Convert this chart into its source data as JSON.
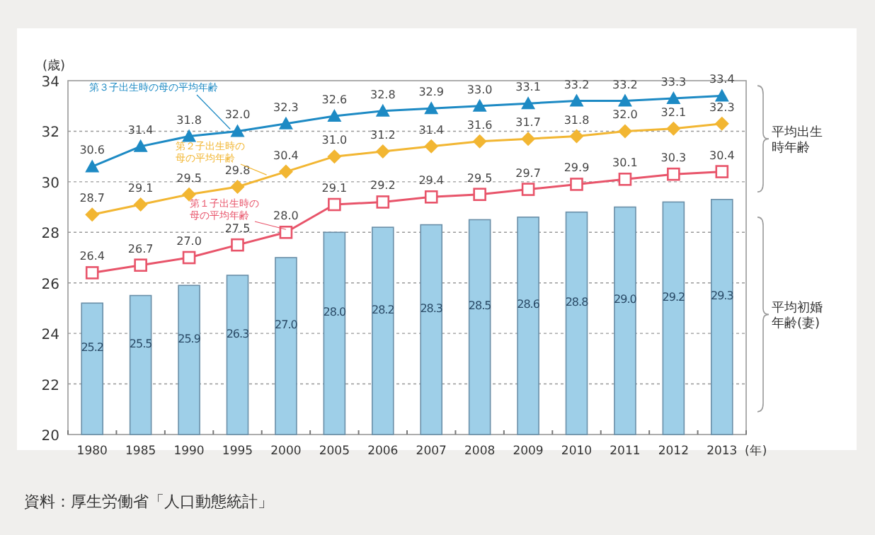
{
  "chart_data": {
    "type": "bar",
    "ylabel": "(歳)",
    "xlabel": "(年)",
    "categories": [
      "1980",
      "1985",
      "1990",
      "1995",
      "2000",
      "2005",
      "2006",
      "2007",
      "2008",
      "2009",
      "2010",
      "2011",
      "2012",
      "2013"
    ],
    "series": [
      {
        "color": "#9ecfe8",
        "values": [
          25.2,
          25.5,
          25.9,
          26.3,
          27.0,
          28.0,
          28.2,
          28.3,
          28.5,
          28.6,
          28.8,
          29.0,
          29.2,
          29.3
        ],
        "value_labels": [
          "25.2",
          "25.5",
          "25.9",
          "26.3",
          "27.0",
          "28.0",
          "28.2",
          "28.3",
          "28.5",
          "28.6",
          "28.8",
          "29.0",
          "29.2",
          "29.3"
        ]
      },
      {
        "type": "line",
        "name": "第１子出生時の母の平均年齢",
        "color": "#e8546a",
        "marker": "square",
        "values": [
          26.4,
          26.7,
          27.0,
          27.5,
          28.0,
          29.1,
          29.2,
          29.4,
          29.5,
          29.7,
          29.9,
          30.1,
          30.3,
          30.4
        ],
        "value_labels": [
          "26.4",
          "26.7",
          "27.0",
          "27.5",
          "28.0",
          "29.1",
          "29.2",
          "29.4",
          "29.5",
          "29.7",
          "29.9",
          "30.1",
          "30.3",
          "30.4"
        ]
      },
      {
        "type": "line",
        "name": "第２子出生時の母の平均年齢",
        "color": "#f2b632",
        "marker": "diamond",
        "values": [
          28.7,
          29.1,
          29.5,
          29.8,
          30.4,
          31.0,
          31.2,
          31.4,
          31.6,
          31.7,
          31.8,
          32.0,
          32.1,
          32.3
        ],
        "value_labels": [
          "28.7",
          "29.1",
          "29.5",
          "29.8",
          "30.4",
          "31.0",
          "31.2",
          "31.4",
          "31.6",
          "31.7",
          "31.8",
          "32.0",
          "32.1",
          "32.3"
        ]
      },
      {
        "type": "line",
        "name": "第３子出生時の母の平均年齢",
        "color": "#1d8ac4",
        "marker": "triangle",
        "values": [
          30.6,
          31.4,
          31.8,
          32.0,
          32.3,
          32.6,
          32.8,
          32.9,
          33.0,
          33.1,
          33.2,
          33.2,
          33.3,
          33.4
        ],
        "value_labels": [
          "30.6",
          "31.4",
          "31.8",
          "32.0",
          "32.3",
          "32.6",
          "32.8",
          "32.9",
          "33.0",
          "33.1",
          "33.2",
          "33.2",
          "33.3",
          "33.4"
        ]
      }
    ],
    "ylim": [
      20,
      34
    ],
    "yticks": [
      20,
      22,
      24,
      26,
      28,
      30,
      32,
      34
    ],
    "grid": "y",
    "annotations": [
      "平均出生時年齢",
      "平均初婚年齢(妻)",
      "資料：厚生労働省「人口動態統計」"
    ]
  }
}
